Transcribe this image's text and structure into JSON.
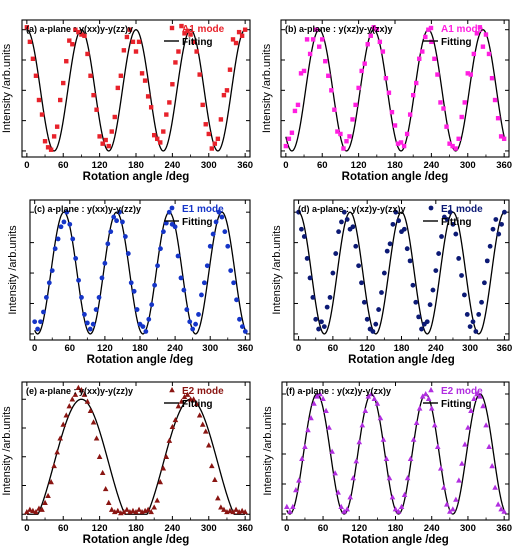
{
  "chart_data": [
    {
      "id": "a",
      "type": "scatter",
      "title": "(a) a-plane : y(xx)y-y(zz)y",
      "xlabel": "Rotation angle /deg",
      "ylabel": "Intensity /arb.units",
      "xlim": [
        -8,
        368
      ],
      "ylim": [
        -0.05,
        1.08
      ],
      "xticks": [
        0,
        60,
        120,
        180,
        240,
        300,
        360
      ],
      "xtick_labels": [
        "0",
        "60",
        "120",
        "180",
        "240",
        "300",
        "360"
      ],
      "legend": {
        "position": "top-right",
        "series_label": "A1 mode",
        "fit_label": "Fitting"
      },
      "marker": "square",
      "color": "#e8222b",
      "fit": {
        "type": "cos",
        "offset": 0.5,
        "amplitude": 0.5,
        "period": 90,
        "phase_deg": 0
      },
      "x": [
        0,
        5,
        10,
        15,
        20,
        25,
        30,
        35,
        40,
        45,
        50,
        55,
        60,
        65,
        70,
        75,
        80,
        85,
        90,
        95,
        100,
        105,
        110,
        115,
        120,
        125,
        130,
        135,
        140,
        145,
        150,
        155,
        160,
        165,
        170,
        175,
        180,
        185,
        190,
        195,
        200,
        205,
        210,
        215,
        220,
        225,
        230,
        235,
        240,
        245,
        250,
        255,
        260,
        265,
        270,
        275,
        280,
        285,
        290,
        295,
        300,
        305,
        310,
        315,
        320,
        325,
        330,
        335,
        340,
        345,
        350,
        355,
        360
      ],
      "y": [
        1.02,
        0.9,
        0.76,
        0.62,
        0.42,
        0.3,
        0.08,
        0.03,
        0.01,
        0.12,
        0.2,
        0.42,
        0.56,
        0.74,
        0.91,
        0.88,
        1.0,
        0.98,
        0.96,
        0.95,
        0.8,
        0.62,
        0.46,
        0.34,
        0.12,
        0.06,
        0.09,
        0.04,
        0.16,
        0.28,
        0.52,
        0.62,
        0.83,
        0.94,
        1.0,
        0.9,
        0.82,
        0.9,
        0.64,
        0.58,
        0.45,
        0.36,
        0.13,
        0.1,
        0.07,
        0.16,
        0.3,
        0.4,
        0.55,
        0.73,
        0.82,
        1.03,
        0.97,
        0.99,
        0.96,
        0.9,
        0.82,
        0.63,
        0.38,
        0.22,
        0.14,
        0.02,
        0.06,
        0.1,
        0.26,
        0.46,
        0.5,
        0.67,
        0.92,
        0.89,
        0.98,
        0.95,
        1.0
      ]
    },
    {
      "id": "b",
      "type": "scatter",
      "title": "(b) a-plane : y(xz)y-y(zx)y",
      "xlabel": "Rotation angle /deg",
      "ylabel": "Intensity /arb.units",
      "xlim": [
        -8,
        368
      ],
      "ylim": [
        -0.05,
        1.08
      ],
      "xticks": [
        0,
        60,
        120,
        180,
        240,
        300,
        360
      ],
      "xtick_labels": [
        "0",
        "60",
        "120",
        "180",
        "240",
        "300",
        "360"
      ],
      "legend": {
        "position": "top-right",
        "series_label": "A1 mode",
        "fit_label": "Fitting"
      },
      "marker": "square",
      "color": "#ff1fe0",
      "fit": {
        "type": "cos",
        "offset": 0.5,
        "amplitude": 0.5,
        "period": 90,
        "phase_deg": 55
      },
      "x": [
        0,
        5,
        10,
        15,
        20,
        25,
        30,
        35,
        40,
        45,
        50,
        55,
        60,
        65,
        70,
        75,
        80,
        85,
        90,
        95,
        100,
        105,
        110,
        115,
        120,
        125,
        130,
        135,
        140,
        145,
        150,
        155,
        160,
        165,
        170,
        175,
        180,
        185,
        190,
        195,
        200,
        205,
        210,
        215,
        220,
        225,
        230,
        235,
        240,
        245,
        250,
        255,
        260,
        265,
        270,
        275,
        280,
        285,
        290,
        295,
        300,
        305,
        310,
        315,
        320,
        325,
        330,
        335,
        340,
        345,
        350,
        355,
        360
      ],
      "y": [
        0.04,
        0.1,
        0.15,
        0.33,
        0.38,
        0.64,
        0.66,
        0.92,
        0.8,
        0.92,
        1.0,
        0.86,
        0.92,
        0.74,
        0.62,
        0.5,
        0.34,
        0.16,
        0.14,
        0.02,
        0.08,
        0.12,
        0.26,
        0.38,
        0.52,
        0.66,
        0.72,
        0.88,
        0.95,
        1.02,
        1.0,
        0.9,
        0.82,
        0.6,
        0.48,
        0.32,
        0.21,
        0.06,
        0.07,
        0.04,
        0.14,
        0.3,
        0.46,
        0.56,
        0.76,
        0.82,
        0.94,
        1.0,
        0.9,
        0.76,
        0.63,
        0.4,
        0.35,
        0.2,
        0.06,
        0.04,
        0.02,
        0.1,
        0.28,
        0.4,
        0.64,
        0.63,
        0.8,
        0.97,
        1.02,
        0.86,
        0.96,
        0.8,
        0.6,
        0.42,
        0.27,
        0.12,
        0.1
      ]
    },
    {
      "id": "c",
      "type": "scatter",
      "title": "(c) a-plane : y(xx)y-y(zz)y",
      "xlabel": "Rotation angle /deg",
      "ylabel": "Intensity /arb.units",
      "xlim": [
        -8,
        368
      ],
      "ylim": [
        -0.05,
        1.1
      ],
      "xticks": [
        0,
        60,
        120,
        180,
        240,
        300,
        360
      ],
      "xtick_labels": [
        "0",
        "60",
        "120",
        "180",
        "240",
        "300",
        "360"
      ],
      "legend": {
        "position": "top-right",
        "series_label": "E1 mode",
        "fit_label": "Fitting"
      },
      "marker": "circle",
      "color": "#1535c8",
      "fit": {
        "type": "cos",
        "offset": 0.5,
        "amplitude": 0.5,
        "period": 90,
        "phase_deg": 50
      },
      "x": [
        0,
        5,
        10,
        15,
        20,
        25,
        30,
        35,
        40,
        45,
        50,
        55,
        60,
        65,
        70,
        75,
        80,
        85,
        90,
        95,
        100,
        105,
        110,
        115,
        120,
        125,
        130,
        135,
        140,
        145,
        150,
        155,
        160,
        165,
        170,
        175,
        180,
        185,
        190,
        195,
        200,
        205,
        210,
        215,
        220,
        225,
        230,
        235,
        240,
        245,
        250,
        255,
        260,
        265,
        270,
        275,
        280,
        285,
        290,
        295,
        300,
        305,
        310,
        315,
        320,
        325,
        330,
        335,
        340,
        345,
        350,
        355,
        360
      ],
      "y": [
        0.1,
        0.04,
        0.1,
        0.18,
        0.3,
        0.42,
        0.52,
        0.7,
        0.78,
        0.88,
        0.92,
        1.0,
        0.9,
        0.78,
        0.62,
        0.44,
        0.3,
        0.16,
        0.09,
        0.04,
        0.08,
        0.2,
        0.3,
        0.46,
        0.58,
        0.74,
        0.84,
        0.96,
        0.93,
        1.0,
        0.92,
        0.8,
        0.66,
        0.42,
        0.35,
        0.2,
        0.08,
        0.06,
        0.02,
        0.12,
        0.24,
        0.4,
        0.56,
        0.7,
        0.84,
        0.91,
        1.0,
        0.9,
        0.88,
        0.64,
        0.46,
        0.36,
        0.2,
        0.1,
        0.04,
        0.08,
        0.16,
        0.32,
        0.42,
        0.56,
        0.72,
        0.82,
        0.92,
        1.0,
        0.96,
        0.84,
        0.72,
        0.52,
        0.42,
        0.28,
        0.12,
        0.06,
        0.02
      ]
    },
    {
      "id": "d",
      "type": "scatter",
      "title": "(d) a-plane : y(xz)y-y(zx)y",
      "xlabel": "Rotation angle /deg",
      "ylabel": "Intensity /arb.units",
      "xlim": [
        -8,
        368
      ],
      "ylim": [
        -0.05,
        1.1
      ],
      "xticks": [
        0,
        60,
        120,
        180,
        240,
        300,
        360
      ],
      "xtick_labels": [
        "0",
        "60",
        "120",
        "180",
        "240",
        "300",
        "360"
      ],
      "legend": {
        "position": "top-right",
        "series_label": "E1 mode",
        "fit_label": "Fitting"
      },
      "marker": "circle",
      "color": "#0c1a75",
      "fit": {
        "type": "cos",
        "offset": 0.5,
        "amplitude": 0.5,
        "period": 90,
        "phase_deg": 0
      },
      "x": [
        0,
        5,
        10,
        15,
        20,
        25,
        30,
        35,
        40,
        45,
        50,
        55,
        60,
        65,
        70,
        75,
        80,
        85,
        90,
        95,
        100,
        105,
        110,
        115,
        120,
        125,
        130,
        135,
        140,
        145,
        150,
        155,
        160,
        165,
        170,
        175,
        180,
        185,
        190,
        195,
        200,
        205,
        210,
        215,
        220,
        225,
        230,
        235,
        240,
        245,
        250,
        255,
        260,
        265,
        270,
        275,
        280,
        285,
        290,
        295,
        300,
        305,
        310,
        315,
        320,
        325,
        330,
        335,
        340,
        345,
        350,
        355,
        360
      ],
      "y": [
        1.0,
        0.86,
        0.8,
        0.62,
        0.46,
        0.3,
        0.12,
        0.04,
        0.1,
        0.06,
        0.22,
        0.3,
        0.5,
        0.66,
        0.84,
        0.92,
        1.0,
        0.94,
        0.86,
        0.88,
        0.72,
        0.56,
        0.42,
        0.26,
        0.12,
        0.04,
        0.02,
        0.08,
        0.2,
        0.34,
        0.5,
        0.68,
        0.74,
        0.9,
        1.0,
        0.93,
        0.84,
        0.86,
        0.7,
        0.6,
        0.4,
        0.26,
        0.14,
        0.04,
        0.08,
        0.1,
        0.24,
        0.36,
        0.52,
        0.66,
        0.8,
        0.96,
        0.94,
        1.0,
        0.9,
        0.82,
        0.62,
        0.48,
        0.32,
        0.16,
        0.06,
        0.1,
        0.02,
        0.16,
        0.26,
        0.42,
        0.6,
        0.72,
        0.86,
        0.94,
        0.82,
        0.9,
        1.0
      ]
    },
    {
      "id": "e",
      "type": "scatter",
      "title": "(e) a-plane : y(xx)y-y(zz)y",
      "xlabel": "Rotation angle /deg",
      "ylabel": "Intensity /arb.units",
      "xlim": [
        -8,
        368
      ],
      "ylim": [
        -0.05,
        1.15
      ],
      "xticks": [
        0,
        60,
        120,
        180,
        240,
        300,
        360
      ],
      "xtick_labels": [
        "0",
        "60",
        "120",
        "180",
        "240",
        "300",
        "360"
      ],
      "legend": {
        "position": "top-right",
        "series_label": "E2 mode",
        "fit_label": "Fitting"
      },
      "marker": "triangle",
      "color": "#8a1512",
      "fit": {
        "type": "cos_squared_gated",
        "center_deg": 90,
        "period": 180,
        "threshold": 0.1
      },
      "x": [
        0,
        5,
        10,
        15,
        20,
        25,
        30,
        35,
        40,
        45,
        50,
        55,
        60,
        65,
        70,
        75,
        80,
        85,
        90,
        95,
        100,
        105,
        110,
        115,
        120,
        125,
        130,
        135,
        140,
        145,
        150,
        155,
        160,
        165,
        170,
        175,
        180,
        185,
        190,
        195,
        200,
        205,
        210,
        215,
        220,
        225,
        230,
        235,
        240,
        245,
        250,
        255,
        260,
        265,
        270,
        275,
        280,
        285,
        290,
        295,
        300,
        305,
        310,
        315,
        320,
        325,
        330,
        335,
        340,
        345,
        350,
        355,
        360
      ],
      "y": [
        0.02,
        0.04,
        0.03,
        0.02,
        0.05,
        0.04,
        0.1,
        0.16,
        0.28,
        0.42,
        0.54,
        0.66,
        0.78,
        0.86,
        0.94,
        1.0,
        1.04,
        1.1,
        1.08,
        1.04,
        0.98,
        0.9,
        0.8,
        0.66,
        0.5,
        0.36,
        0.22,
        0.1,
        0.04,
        0.02,
        0.03,
        0.01,
        0.02,
        0.04,
        0.02,
        0.03,
        0.02,
        0.04,
        0.02,
        0.03,
        0.04,
        0.02,
        0.06,
        0.12,
        0.28,
        0.4,
        0.5,
        0.64,
        0.76,
        0.82,
        0.94,
        0.98,
        1.02,
        1.04,
        1.0,
        1.0,
        0.96,
        0.86,
        0.78,
        0.72,
        0.6,
        0.42,
        0.3,
        0.14,
        0.06,
        0.04,
        0.02,
        0.03,
        0.02,
        0.04,
        0.02,
        0.03,
        0.02
      ]
    },
    {
      "id": "f",
      "type": "scatter",
      "title": "(f) a-plane : y(xz)y-y(zx)y",
      "xlabel": "Rotation angle /deg",
      "ylabel": "Intensity /arb.units",
      "xlim": [
        -8,
        368
      ],
      "ylim": [
        -0.05,
        1.1
      ],
      "xticks": [
        0,
        60,
        120,
        180,
        240,
        300,
        360
      ],
      "xtick_labels": [
        "0",
        "60",
        "120",
        "180",
        "240",
        "300",
        "360"
      ],
      "legend": {
        "position": "top-right",
        "series_label": "E2 mode",
        "fit_label": "Fitting"
      },
      "marker": "triangle",
      "color": "#b12ee0",
      "fit": {
        "type": "cos",
        "offset": 0.5,
        "amplitude": 0.5,
        "period": 90,
        "phase_deg": 50
      },
      "x": [
        0,
        5,
        10,
        15,
        20,
        25,
        30,
        35,
        40,
        45,
        50,
        55,
        60,
        65,
        70,
        75,
        80,
        85,
        90,
        95,
        100,
        105,
        110,
        115,
        120,
        125,
        130,
        135,
        140,
        145,
        150,
        155,
        160,
        165,
        170,
        175,
        180,
        185,
        190,
        195,
        200,
        205,
        210,
        215,
        220,
        225,
        230,
        235,
        240,
        245,
        250,
        255,
        260,
        265,
        270,
        275,
        280,
        285,
        290,
        295,
        300,
        305,
        310,
        315,
        320,
        325,
        330,
        335,
        340,
        345,
        350,
        355,
        360
      ],
      "y": [
        0.06,
        0.02,
        0.06,
        0.2,
        0.28,
        0.46,
        0.56,
        0.7,
        0.8,
        0.92,
        0.98,
        1.0,
        0.96,
        0.86,
        0.72,
        0.52,
        0.34,
        0.18,
        0.06,
        0.02,
        0.04,
        0.14,
        0.3,
        0.44,
        0.6,
        0.74,
        0.86,
        0.98,
        1.0,
        0.96,
        0.92,
        0.8,
        0.62,
        0.46,
        0.3,
        0.14,
        0.04,
        0.02,
        0.06,
        0.16,
        0.3,
        0.46,
        0.62,
        0.76,
        0.88,
        0.98,
        1.0,
        0.96,
        0.88,
        0.74,
        0.56,
        0.38,
        0.22,
        0.08,
        0.02,
        0.04,
        0.12,
        0.28,
        0.42,
        0.58,
        0.72,
        0.86,
        0.96,
        1.0,
        0.98,
        0.9,
        0.74,
        0.56,
        0.4,
        0.22,
        0.08,
        0.04,
        0.02
      ]
    }
  ]
}
